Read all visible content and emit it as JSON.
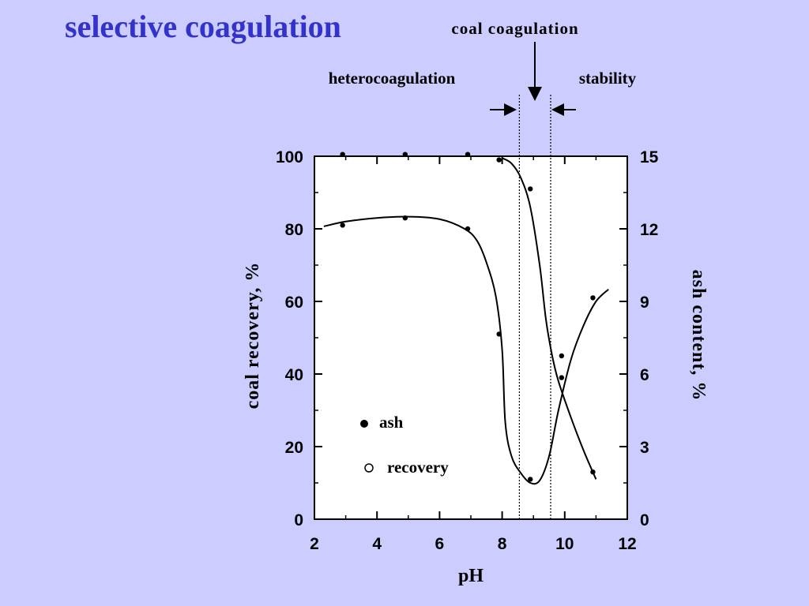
{
  "slide": {
    "title": "selective coagulation"
  },
  "chart_data": {
    "type": "scatter",
    "title": "",
    "xlabel": "pH",
    "ylabel_left": "coal recovery, %",
    "ylabel_right": "ash content, %",
    "xlim": [
      2,
      12
    ],
    "ylim_left": [
      0,
      100
    ],
    "ylim_right": [
      0,
      15
    ],
    "x_ticks": [
      "2",
      "4",
      "6",
      "8",
      "10",
      "12"
    ],
    "y_ticks_left": [
      "0",
      "20",
      "40",
      "60",
      "80",
      "100"
    ],
    "y_ticks_right": [
      "0",
      "3",
      "6",
      "9",
      "12",
      "15"
    ],
    "grid": false,
    "legend": {
      "position": "lower-left",
      "entries": [
        {
          "label": "ash",
          "marker": "filled-circle"
        },
        {
          "label": "recovery",
          "marker": "open-circle"
        }
      ]
    },
    "series": [
      {
        "name": "recovery",
        "axis": "left",
        "points": [
          [
            2.9,
            100.5
          ],
          [
            4.9,
            100.5
          ],
          [
            6.9,
            100.5
          ],
          [
            7.9,
            99
          ],
          [
            8.9,
            91
          ],
          [
            9.9,
            39
          ],
          [
            10.9,
            13
          ]
        ],
        "curve": [
          [
            8.0,
            99.5
          ],
          [
            8.3,
            98
          ],
          [
            8.6,
            94
          ],
          [
            8.9,
            86
          ],
          [
            9.2,
            70
          ],
          [
            9.4,
            55
          ],
          [
            9.6,
            45
          ],
          [
            9.8,
            38
          ],
          [
            10.2,
            28
          ],
          [
            10.6,
            19
          ],
          [
            11.0,
            11
          ]
        ]
      },
      {
        "name": "ash",
        "axis": "right",
        "points": [
          [
            2.9,
            12.15
          ],
          [
            4.9,
            12.45
          ],
          [
            6.9,
            12.0
          ],
          [
            7.9,
            7.65
          ],
          [
            8.9,
            1.65
          ],
          [
            9.9,
            6.75
          ],
          [
            10.9,
            9.15
          ]
        ],
        "curve": [
          [
            2.3,
            12.1
          ],
          [
            3.0,
            12.3
          ],
          [
            4.0,
            12.45
          ],
          [
            5.0,
            12.5
          ],
          [
            6.0,
            12.4
          ],
          [
            6.8,
            12.0
          ],
          [
            7.2,
            11.5
          ],
          [
            7.5,
            10.6
          ],
          [
            7.8,
            9.2
          ],
          [
            8.0,
            7.0
          ],
          [
            8.1,
            4.0
          ],
          [
            8.3,
            2.6
          ],
          [
            8.6,
            1.9
          ],
          [
            8.9,
            1.5
          ],
          [
            9.2,
            1.6
          ],
          [
            9.5,
            2.6
          ],
          [
            9.8,
            4.5
          ],
          [
            10.2,
            6.6
          ],
          [
            10.6,
            8.0
          ],
          [
            11.0,
            9.0
          ],
          [
            11.4,
            9.5
          ]
        ]
      }
    ],
    "regions": {
      "boundaries_pH": [
        8.5,
        9.5
      ],
      "labels": {
        "heterocoagulation": "heterocoagulation",
        "coal_coagulation": "coal coagulation",
        "stability": "stability"
      }
    }
  }
}
